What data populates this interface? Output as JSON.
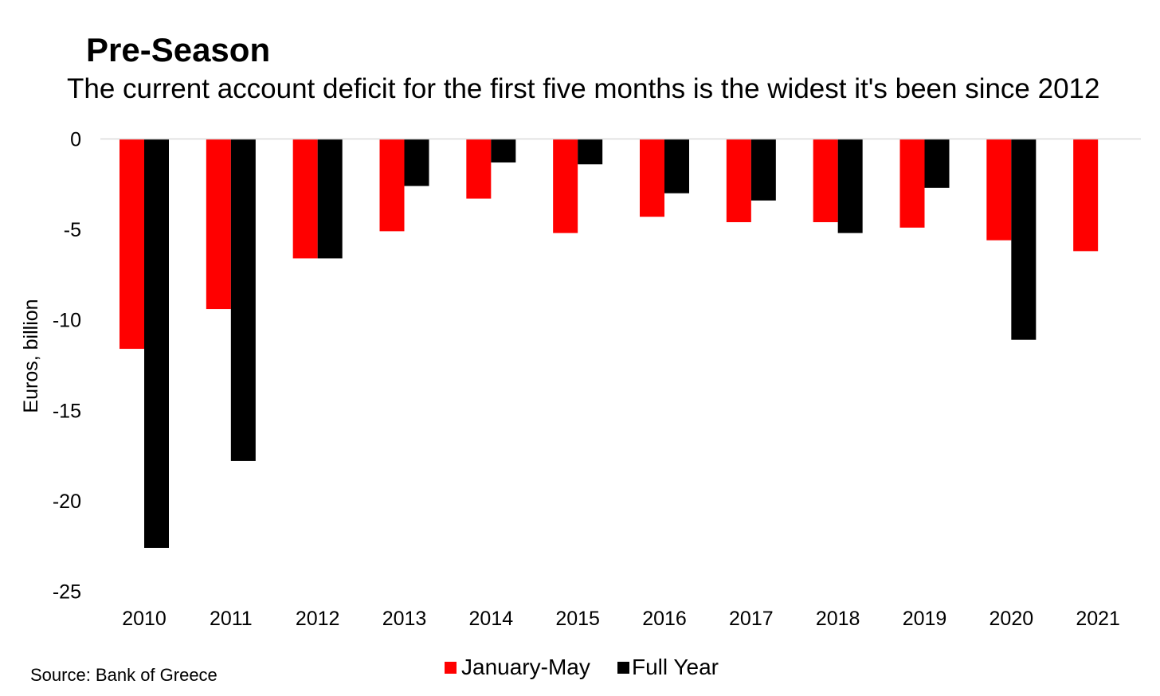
{
  "chart_data": {
    "type": "bar",
    "title": "Pre-Season",
    "subtitle": "The current account deficit for the first five months is the widest it's been since 2012",
    "ylabel": "Euros, billion",
    "xlabel": "",
    "source": "Source: Bank of Greece",
    "ylim": [
      -25,
      0
    ],
    "yticks": [
      0,
      -5,
      -10,
      -15,
      -20,
      -25
    ],
    "categories": [
      "2010",
      "2011",
      "2012",
      "2013",
      "2014",
      "2015",
      "2016",
      "2017",
      "2018",
      "2019",
      "2020",
      "2021"
    ],
    "series": [
      {
        "name": "January-May",
        "color": "#ff0000",
        "values": [
          -11.6,
          -9.4,
          -6.6,
          -5.1,
          -3.3,
          -5.2,
          -4.3,
          -4.6,
          -4.6,
          -4.9,
          -5.6,
          -6.2
        ]
      },
      {
        "name": "Full Year",
        "color": "#000000",
        "values": [
          -22.6,
          -17.8,
          -6.6,
          -2.6,
          -1.3,
          -1.4,
          -3.0,
          -3.4,
          -5.2,
          -2.7,
          -11.1,
          null
        ]
      }
    ],
    "grid": false,
    "legend_position": "bottom"
  }
}
